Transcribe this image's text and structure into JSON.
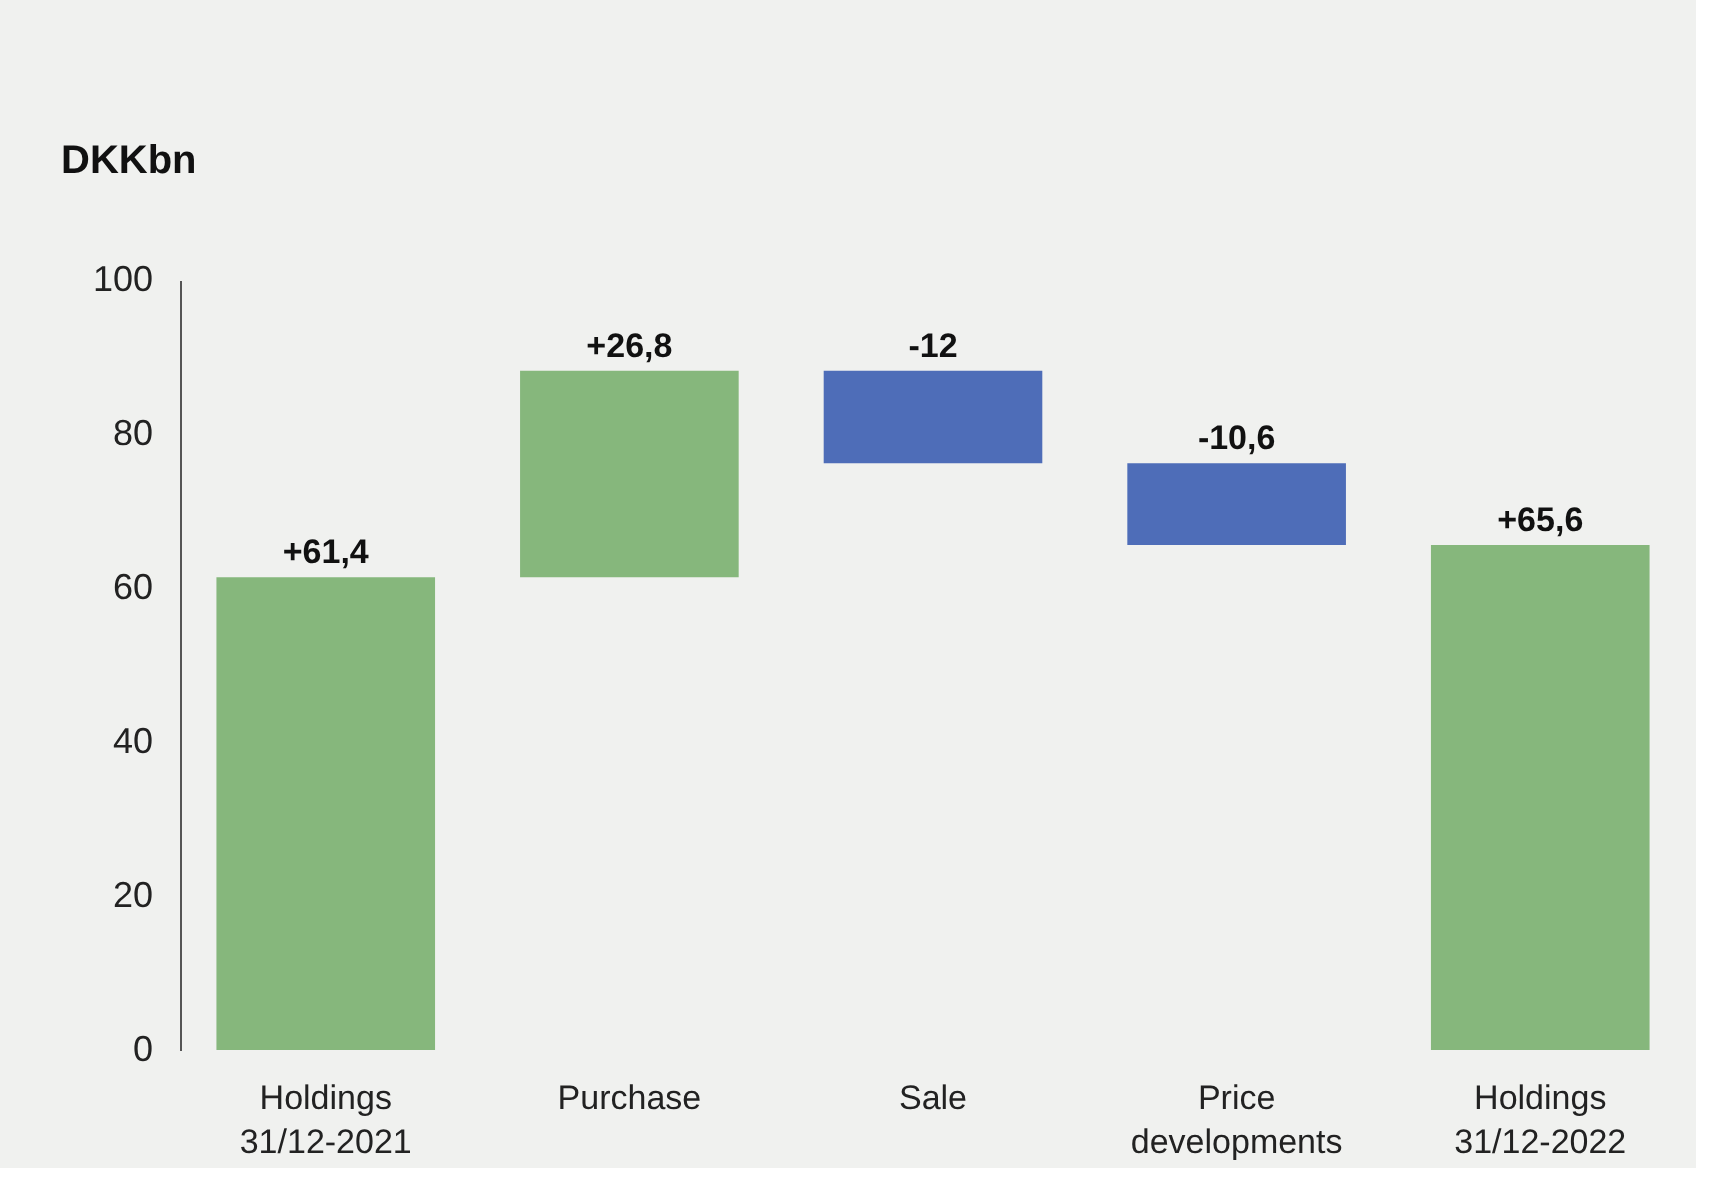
{
  "chart_data": {
    "type": "bar",
    "ylabel": "DKKbn",
    "categories": [
      "Holdings\n31/12-2021",
      "Purchase",
      "Sale",
      "Price\ndevelopments",
      "Holdings\n31/12-2022"
    ],
    "values": [
      61.4,
      26.8,
      -12,
      -10.6,
      65.6
    ],
    "base": [
      0,
      61.4,
      88.2,
      76.2,
      0
    ],
    "colors": [
      "#86b77c",
      "#86b77c",
      "#4e6db8",
      "#4e6db8",
      "#86b77c"
    ],
    "value_labels": [
      "+61,4",
      "+26,8",
      "-12",
      "-10,6",
      "+65,6"
    ],
    "ylim": [
      0,
      100
    ],
    "yticks": [
      0,
      20,
      40,
      60,
      80,
      100
    ],
    "grid": false
  }
}
